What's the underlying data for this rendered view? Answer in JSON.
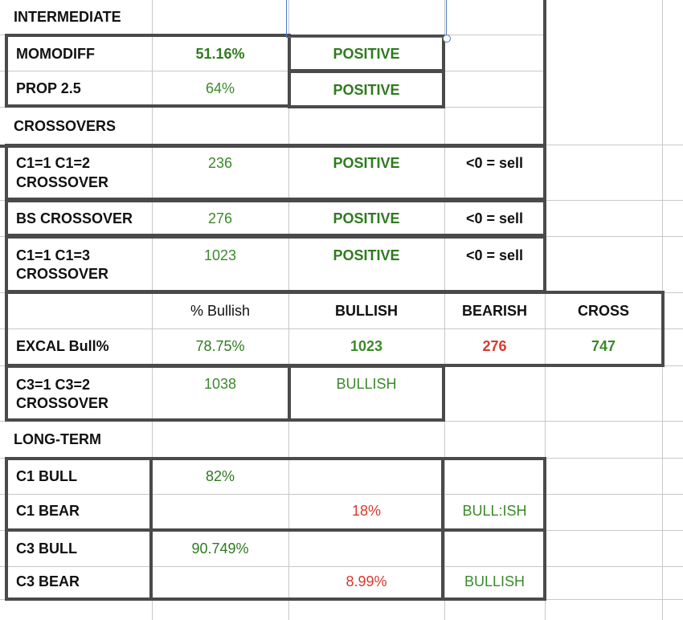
{
  "sheet": {
    "intermediate_header": "INTERMEDIATE",
    "momodiff": {
      "label": "MOMODIFF",
      "value": "51.16%",
      "signal": "POSITIVE"
    },
    "prop25": {
      "label": "PROP 2.5",
      "value": "64%",
      "signal": "POSITIVE"
    },
    "crossovers_header": "CROSSOVERS",
    "c1c2": {
      "label_line1": "C1=1 C1=2",
      "label_line2": "CROSSOVER",
      "value": "236",
      "signal": "POSITIVE",
      "rule": "<0 = sell"
    },
    "bs": {
      "label": "BS CROSSOVER",
      "value": "276",
      "signal": "POSITIVE",
      "rule": "<0 = sell"
    },
    "c1c3": {
      "label_line1": "C1=1 C1=3",
      "label_line2": "CROSSOVER",
      "value": "1023",
      "signal": "POSITIVE",
      "rule": "<0 = sell"
    },
    "excal_header": {
      "pct": "% Bullish",
      "bullish": "BULLISH",
      "bearish": "BEARISH",
      "cross": "CROSS"
    },
    "excal": {
      "label": "EXCAL Bull%",
      "pct": "78.75%",
      "bullish": "1023",
      "bearish": "276",
      "cross": "747"
    },
    "c3c3": {
      "label_line1": "C3=1 C3=2",
      "label_line2": "CROSSOVER",
      "value": "1038",
      "signal": "BULLISH"
    },
    "longterm_header": "LONG-TERM",
    "c1bull": {
      "label": "C1 BULL",
      "value": "82%"
    },
    "c1bear": {
      "label": "C1 BEAR",
      "value": "18%",
      "signal": "BULL:ISH"
    },
    "c3bull": {
      "label": "C3 BULL",
      "value": "90.749%"
    },
    "c3bear": {
      "label": "C3 BEAR",
      "value": "8.99%",
      "signal": "BULLISH"
    }
  }
}
